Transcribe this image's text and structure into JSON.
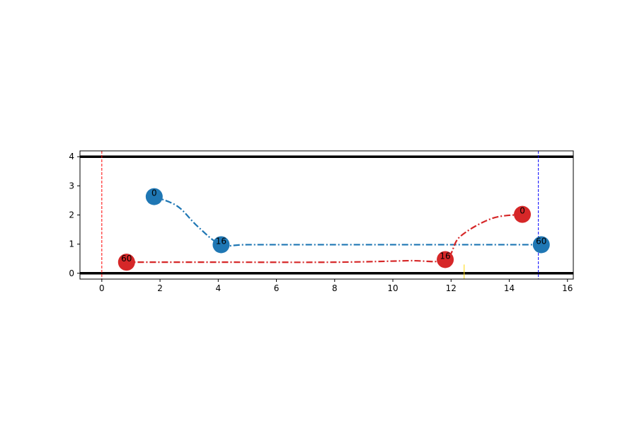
{
  "chart_data": {
    "type": "line",
    "title": "",
    "xlabel": "",
    "ylabel": "",
    "xlim": [
      -0.75,
      16.2
    ],
    "ylim": [
      -0.2,
      4.2
    ],
    "xticks": [
      0,
      2,
      4,
      6,
      8,
      10,
      12,
      14,
      16
    ],
    "yticks": [
      0,
      1,
      2,
      3,
      4
    ],
    "grid": false,
    "legend": "none",
    "boundaries": [
      {
        "orientation": "horizontal",
        "value": 4,
        "color": "#000000",
        "style": "solid"
      },
      {
        "orientation": "horizontal",
        "value": 0,
        "color": "#000000",
        "style": "solid"
      },
      {
        "orientation": "vertical",
        "value": 0,
        "color": "#ff0000",
        "style": "dashed"
      },
      {
        "orientation": "vertical",
        "value": 15,
        "color": "#0000ff",
        "style": "dashed"
      }
    ],
    "marker": {
      "x": 12.45,
      "y_from": -0.2,
      "y_to": 0.3,
      "color": "#ffd700"
    },
    "series": [
      {
        "color": "#1f77b4",
        "points": [
          [
            1.8,
            2.63
          ],
          [
            2.6,
            2.3
          ],
          [
            3.3,
            1.6
          ],
          [
            4.1,
            0.98
          ],
          [
            5.0,
            0.98
          ],
          [
            8.0,
            0.98
          ],
          [
            11.0,
            0.98
          ],
          [
            13.5,
            0.98
          ],
          [
            15.1,
            0.98
          ]
        ],
        "labeled": [
          {
            "x": 1.8,
            "y": 2.63,
            "label": "0"
          },
          {
            "x": 4.1,
            "y": 0.98,
            "label": "16"
          },
          {
            "x": 15.1,
            "y": 0.98,
            "label": "60"
          }
        ]
      },
      {
        "color": "#d62728",
        "points": [
          [
            14.45,
            2.02
          ],
          [
            13.4,
            1.88
          ],
          [
            12.3,
            1.25
          ],
          [
            11.8,
            0.47
          ],
          [
            10.5,
            0.43
          ],
          [
            8.0,
            0.38
          ],
          [
            4.0,
            0.38
          ],
          [
            0.85,
            0.38
          ]
        ],
        "labeled": [
          {
            "x": 14.45,
            "y": 2.02,
            "label": "0"
          },
          {
            "x": 11.8,
            "y": 0.47,
            "label": "16"
          },
          {
            "x": 0.85,
            "y": 0.38,
            "label": "60"
          }
        ]
      }
    ]
  }
}
